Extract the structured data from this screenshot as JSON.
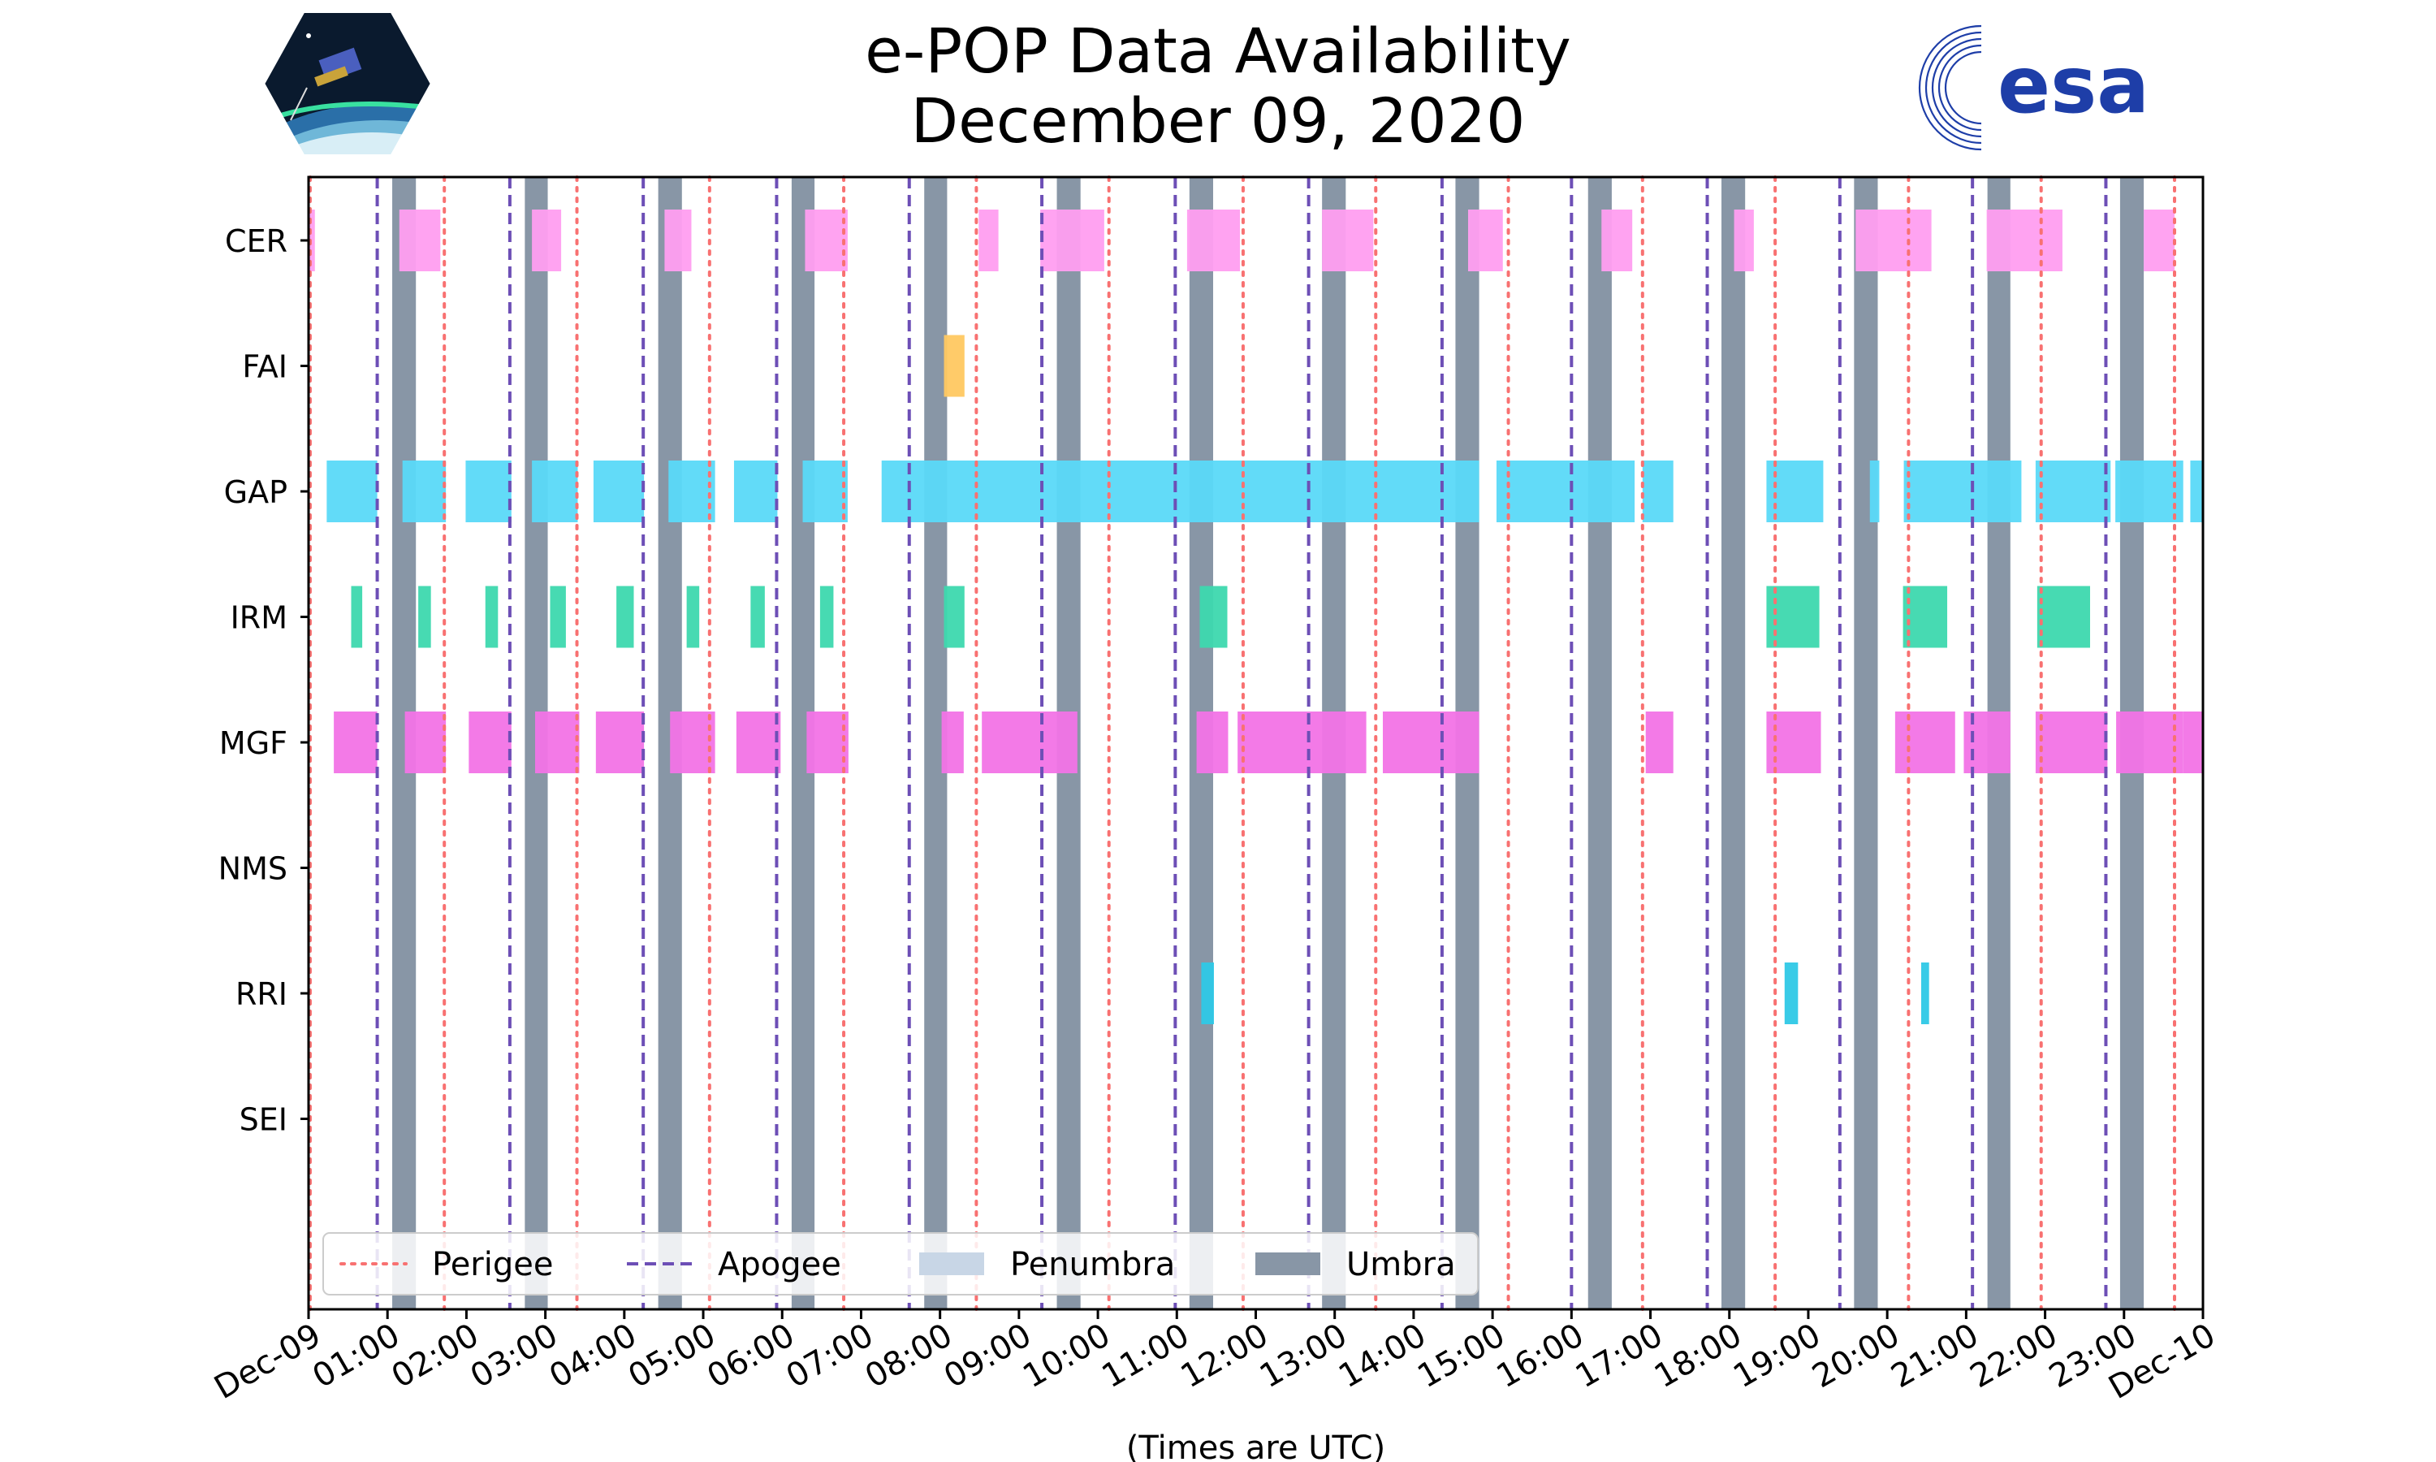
{
  "title": {
    "line1": "e-POP Data Availability",
    "line2": "December 09, 2020"
  },
  "logos": {
    "left": "CASSIOPE",
    "right": "esa"
  },
  "colors": {
    "perigee": "#f87171",
    "apogee": "#6d4fb6",
    "penumbra": "#c8d6e6",
    "umbra": "#8896a6",
    "CER": "#ff9ef0",
    "FAI": "#ffc861",
    "GAP": "#5ad9f8",
    "IRM": "#3dd8ae",
    "MGF": "#f273e6",
    "NMS": "#999999",
    "RRI": "#2ec8e6",
    "SEI": "#999999"
  },
  "chart_data": {
    "type": "timeline",
    "title": "e-POP Data Availability December 09, 2020",
    "xlabel": "(Times are UTC)",
    "xlim_hours": [
      0,
      24
    ],
    "x_tick_labels": [
      "Dec-09",
      "01:00",
      "02:00",
      "03:00",
      "04:00",
      "05:00",
      "06:00",
      "07:00",
      "08:00",
      "09:00",
      "10:00",
      "11:00",
      "12:00",
      "13:00",
      "14:00",
      "15:00",
      "16:00",
      "17:00",
      "18:00",
      "19:00",
      "20:00",
      "21:00",
      "22:00",
      "23:00",
      "Dec-10"
    ],
    "instruments": [
      "CER",
      "FAI",
      "GAP",
      "IRM",
      "MGF",
      "NMS",
      "RRI",
      "SEI"
    ],
    "perigee_hours": [
      0.02,
      1.72,
      3.4,
      5.08,
      6.78,
      8.46,
      10.14,
      11.84,
      13.52,
      15.2,
      16.9,
      18.58,
      20.27,
      21.95,
      23.64
    ],
    "apogee_hours": [
      0.87,
      2.55,
      4.24,
      5.93,
      7.61,
      9.29,
      10.98,
      12.67,
      14.36,
      16.0,
      17.72,
      19.4,
      21.08,
      22.77
    ],
    "umbra_intervals": [
      [
        1.06,
        1.36
      ],
      [
        2.74,
        3.03
      ],
      [
        4.43,
        4.73
      ],
      [
        6.12,
        6.41
      ],
      [
        7.8,
        8.09
      ],
      [
        9.48,
        9.78
      ],
      [
        11.16,
        11.46
      ],
      [
        12.84,
        13.14
      ],
      [
        14.53,
        14.83
      ],
      [
        16.21,
        16.51
      ],
      [
        17.9,
        18.2
      ],
      [
        19.58,
        19.88
      ],
      [
        21.27,
        21.56
      ],
      [
        22.95,
        23.25
      ]
    ],
    "penumbra_intervals": [],
    "series": [
      {
        "name": "CER",
        "intervals": [
          [
            0.0,
            0.08
          ],
          [
            1.15,
            1.67
          ],
          [
            2.83,
            3.2
          ],
          [
            4.51,
            4.85
          ],
          [
            6.29,
            6.83
          ],
          [
            8.49,
            8.74
          ],
          [
            9.27,
            10.08
          ],
          [
            11.13,
            11.8
          ],
          [
            12.84,
            13.49
          ],
          [
            14.69,
            15.13
          ],
          [
            16.38,
            16.77
          ],
          [
            18.06,
            18.31
          ],
          [
            19.6,
            20.56
          ],
          [
            21.26,
            22.22
          ],
          [
            23.25,
            23.64
          ]
        ]
      },
      {
        "name": "FAI",
        "intervals": [
          [
            8.05,
            8.31
          ]
        ]
      },
      {
        "name": "GAP",
        "intervals": [
          [
            0.23,
            0.87
          ],
          [
            1.19,
            1.74
          ],
          [
            1.99,
            2.57
          ],
          [
            2.83,
            3.41
          ],
          [
            3.61,
            4.25
          ],
          [
            4.56,
            5.15
          ],
          [
            5.39,
            5.94
          ],
          [
            6.26,
            6.83
          ],
          [
            7.26,
            14.83
          ],
          [
            15.05,
            16.8
          ],
          [
            16.9,
            17.29
          ],
          [
            18.47,
            19.19
          ],
          [
            19.78,
            19.9
          ],
          [
            20.21,
            21.7
          ],
          [
            21.88,
            22.83
          ],
          [
            22.89,
            23.75
          ],
          [
            23.84,
            24.0
          ]
        ]
      },
      {
        "name": "IRM",
        "intervals": [
          [
            0.54,
            0.68
          ],
          [
            1.39,
            1.55
          ],
          [
            2.24,
            2.4
          ],
          [
            3.06,
            3.26
          ],
          [
            3.9,
            4.12
          ],
          [
            4.79,
            4.95
          ],
          [
            5.6,
            5.78
          ],
          [
            6.48,
            6.65
          ],
          [
            8.05,
            8.31
          ],
          [
            11.29,
            11.64
          ],
          [
            18.47,
            19.14
          ],
          [
            20.2,
            20.76
          ],
          [
            21.9,
            22.57
          ]
        ]
      },
      {
        "name": "MGF",
        "intervals": [
          [
            0.32,
            0.87
          ],
          [
            1.22,
            1.74
          ],
          [
            2.03,
            2.57
          ],
          [
            2.87,
            3.43
          ],
          [
            3.64,
            4.25
          ],
          [
            4.58,
            5.15
          ],
          [
            5.42,
            5.98
          ],
          [
            6.31,
            6.84
          ],
          [
            8.02,
            8.3
          ],
          [
            8.53,
            9.74
          ],
          [
            11.25,
            11.65
          ],
          [
            11.77,
            13.4
          ],
          [
            13.61,
            14.83
          ],
          [
            16.94,
            17.29
          ],
          [
            18.47,
            19.16
          ],
          [
            20.1,
            20.86
          ],
          [
            20.97,
            21.56
          ],
          [
            21.88,
            22.79
          ],
          [
            22.9,
            23.75
          ],
          [
            23.75,
            24.0
          ]
        ]
      },
      {
        "name": "NMS",
        "intervals": []
      },
      {
        "name": "RRI",
        "intervals": [
          [
            11.31,
            11.47
          ],
          [
            18.7,
            18.87
          ],
          [
            20.43,
            20.53
          ]
        ]
      },
      {
        "name": "SEI",
        "intervals": []
      }
    ],
    "legend": {
      "position": "bottom-left",
      "entries": [
        {
          "label": "Perigee",
          "style": "dotted"
        },
        {
          "label": "Apogee",
          "style": "dashed"
        },
        {
          "label": "Penumbra",
          "style": "patch-light"
        },
        {
          "label": "Umbra",
          "style": "patch-dark"
        }
      ]
    }
  }
}
